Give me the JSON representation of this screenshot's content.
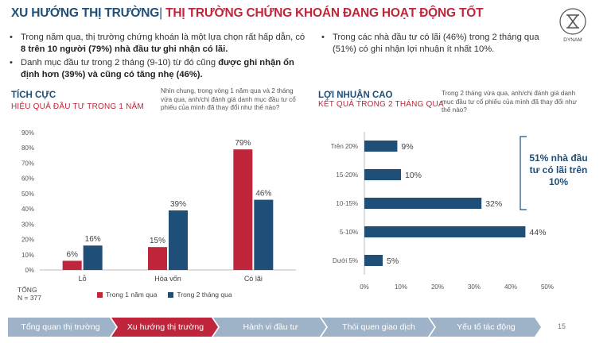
{
  "header": {
    "title_part1": "XU HƯỚNG THỊ TRƯỜNG",
    "separator": "|",
    "title_part2": "THỊ TRƯỜNG CHỨNG KHOÁN ĐANG HOẠT ĐỘNG TỐT",
    "logo_text": "DYNAM"
  },
  "bullets_left": [
    {
      "pre": "Trong năm qua, thị trường chứng khoán là một lựa chọn rất hấp dẫn, có ",
      "bold": "8 trên 10 người (79%) nhà đầu tư ghi nhận có lãi.",
      "post": ""
    },
    {
      "pre": "Danh mục đầu tư trong 2 tháng (9-10) từ đó cũng ",
      "bold": "được ghi nhận ổn định hơn (39%) và cũng có tăng nhẹ (46%).",
      "post": ""
    }
  ],
  "bullets_right": [
    {
      "text": "Trong các nhà đầu tư có lãi (46%) trong 2 tháng qua (51%) có ghi nhận lợi nhuận ít nhất 10%."
    }
  ],
  "left_section": {
    "title": "TÍCH CỰC",
    "subtitle": "HIỆU QUẢ ĐẦU TƯ TRONG 1 NĂM",
    "question": "Nhìn chung, trong vòng 1 năm qua và 2 tháng vừa qua, anh/chị đánh giá danh mục đầu tư cổ phiếu của mình đã thay đổi như thế nào?",
    "total_label": "TỔNG",
    "total_n": "N = 377"
  },
  "right_section": {
    "title": "LỢI NHUẬN CAO",
    "subtitle": "KẾT QUẢ TRONG 2 THÁNG QUA",
    "question": "Trong 2 tháng vừa qua, anh/chị đánh giá danh mục đầu tư cổ phiếu của mình đã thay đổi như thế nào?",
    "callout": "51% nhà đầu tư có lãi trên 10%"
  },
  "chart_data": [
    {
      "type": "bar",
      "categories": [
        "Lỗ",
        "Hòa vốn",
        "Có lãi"
      ],
      "series": [
        {
          "name": "Trong 1 năm qua",
          "values": [
            6,
            15,
            79
          ],
          "color": "#C0263B"
        },
        {
          "name": "Trong 2 tháng qua",
          "values": [
            16,
            39,
            46
          ],
          "color": "#1F4E79"
        }
      ],
      "ylim": [
        0,
        90
      ],
      "yticks": [
        "0%",
        "10%",
        "20%",
        "30%",
        "40%",
        "50%",
        "60%",
        "70%",
        "80%",
        "90%"
      ],
      "unit": "%",
      "grid": false,
      "legend": "bottom"
    },
    {
      "type": "bar",
      "orientation": "horizontal",
      "categories": [
        "Trên 20%",
        "15-20%",
        "10-15%",
        "5-10%",
        "Dưới 5%"
      ],
      "values": [
        9,
        10,
        32,
        44,
        5
      ],
      "color": "#1F4E79",
      "xlim": [
        0,
        50
      ],
      "xticks": [
        "0%",
        "10%",
        "20%",
        "30%",
        "40%",
        "50%"
      ],
      "unit": "%",
      "grid": false
    }
  ],
  "nav": {
    "items": [
      "Tổng quan thị trường",
      "Xu hướng thị trường",
      "Hành vi đầu tư",
      "Thói quen giao dịch",
      "Yếu tố tác động"
    ],
    "active_index": 1,
    "colors": {
      "active": "#C0263B",
      "inactive": "#9FB3C8"
    }
  },
  "page_number": "15"
}
